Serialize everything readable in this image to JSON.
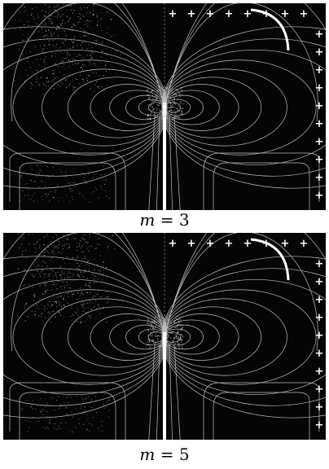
{
  "figure": {
    "panels": [
      {
        "caption_var": "m",
        "caption_rest": " = 3",
        "m": 3
      },
      {
        "caption_var": "m",
        "caption_rest": " = 5",
        "m": 5
      }
    ],
    "plus_glyph": "+"
  },
  "colors": {
    "background": "#050505",
    "contour": "#bfbfbf",
    "highlight": "#ffffff",
    "page": "#ffffff"
  }
}
